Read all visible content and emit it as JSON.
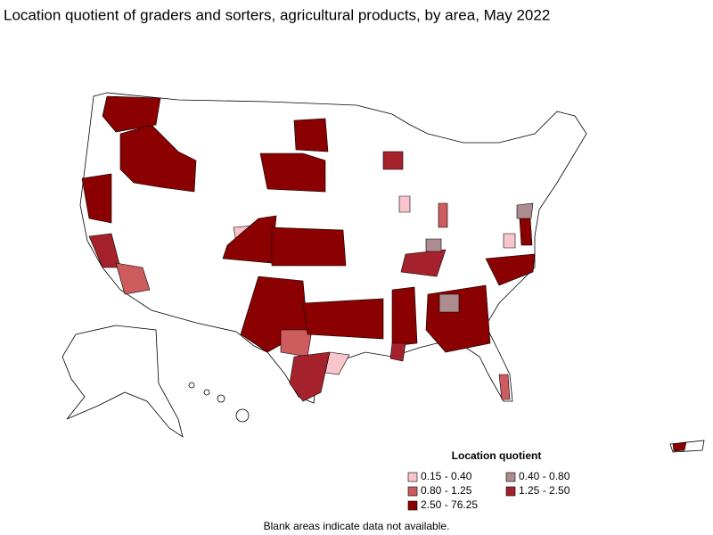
{
  "title": "Location quotient of graders and sorters, agricultural products, by area, May 2022",
  "legend": {
    "title": "Location quotient",
    "items": [
      {
        "label": "0.15 - 0.40",
        "color": "#f7c5cb"
      },
      {
        "label": "0.40 - 0.80",
        "color": "#ad8c90"
      },
      {
        "label": "0.80 - 1.25",
        "color": "#cd5c5f"
      },
      {
        "label": "1.25 - 2.50",
        "color": "#a5222c"
      },
      {
        "label": "2.50 - 76.25",
        "color": "#8b0000"
      }
    ]
  },
  "note": "Blank areas indicate data not available."
}
